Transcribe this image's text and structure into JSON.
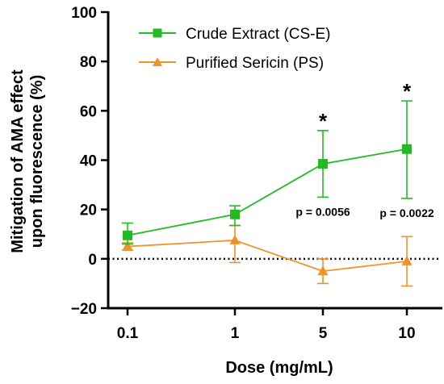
{
  "chart_data": {
    "type": "line",
    "x_categories": [
      "0.1",
      "1",
      "5",
      "10"
    ],
    "xlabel": "Dose (mg/mL)",
    "ylabel_lines": [
      "Mitigation of AMA effect",
      "upon fluorescence (%)"
    ],
    "ylim": [
      -20,
      100
    ],
    "y_ticks": [
      -20,
      0,
      20,
      40,
      60,
      80,
      100
    ],
    "y_tick_labels": [
      "−20",
      "0",
      "20",
      "40",
      "60",
      "80",
      "100"
    ],
    "reference_line_y": 0,
    "grid": false,
    "legend_position": "top-left",
    "series": [
      {
        "name": "Crude Extract (CS-E)",
        "color": "#22bb22",
        "marker": "square",
        "values": [
          9.5,
          18,
          38.5,
          44.5
        ],
        "error_low": [
          6,
          13.5,
          25,
          24.5
        ],
        "error_high": [
          14.5,
          21.5,
          52,
          64
        ]
      },
      {
        "name": "Purified Sericin (PS)",
        "color": "#f0922a",
        "marker": "triangle",
        "values": [
          5,
          7.5,
          -5,
          -1
        ],
        "error_low": [
          3.5,
          -1.5,
          -10,
          -11
        ],
        "error_high": [
          6.5,
          13.5,
          0,
          9
        ]
      }
    ],
    "annotations": [
      {
        "category": "5",
        "star": "*",
        "p_text": "p = 0.0056"
      },
      {
        "category": "10",
        "star": "*",
        "p_text": "p = 0.0022"
      }
    ]
  }
}
